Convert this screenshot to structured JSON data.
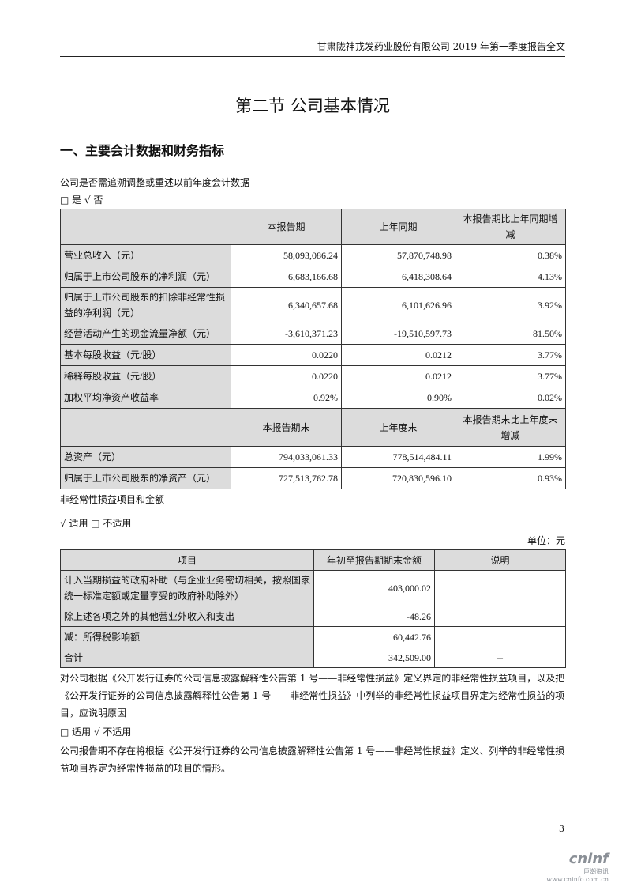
{
  "header": "甘肃陇神戎发药业股份有限公司 2019 年第一季度报告全文",
  "section_title": "第二节  公司基本情况",
  "heading1": "一、主要会计数据和财务指标",
  "restate_q": "公司是否需追溯调整或重述以前年度会计数据",
  "restate_opts": "□ 是 √ 否",
  "table1": {
    "headers": [
      "",
      "本报告期",
      "上年同期",
      "本报告期比上年同期增减"
    ],
    "rows": [
      [
        "营业总收入（元）",
        "58,093,086.24",
        "57,870,748.98",
        "0.38%"
      ],
      [
        "归属于上市公司股东的净利润（元）",
        "6,683,166.68",
        "6,418,308.64",
        "4.13%"
      ],
      [
        "归属于上市公司股东的扣除非经常性损益的净利润（元）",
        "6,340,657.68",
        "6,101,626.96",
        "3.92%"
      ],
      [
        "经营活动产生的现金流量净额（元）",
        "-3,610,371.23",
        "-19,510,597.73",
        "81.50%"
      ],
      [
        "基本每股收益（元/股）",
        "0.0220",
        "0.0212",
        "3.77%"
      ],
      [
        "稀释每股收益（元/股）",
        "0.0220",
        "0.0212",
        "3.77%"
      ],
      [
        "加权平均净资产收益率",
        "0.92%",
        "0.90%",
        "0.02%"
      ]
    ],
    "headers2": [
      "",
      "本报告期末",
      "上年度末",
      "本报告期末比上年度末增减"
    ],
    "rows2": [
      [
        "总资产（元）",
        "794,033,061.33",
        "778,514,484.11",
        "1.99%"
      ],
      [
        "归属于上市公司股东的净资产（元）",
        "727,513,762.78",
        "720,830,596.10",
        "0.93%"
      ]
    ]
  },
  "nonrec_title": "非经常性损益项目和金额",
  "nonrec_opts": "√ 适用 □ 不适用",
  "unit": "单位：元",
  "table2": {
    "headers": [
      "项目",
      "年初至报告期期末金额",
      "说明"
    ],
    "rows": [
      [
        "计入当期损益的政府补助（与企业业务密切相关，按照国家统一标准定额或定量享受的政府补助除外）",
        "403,000.02",
        ""
      ],
      [
        "除上述各项之外的其他营业外收入和支出",
        "-48.26",
        ""
      ],
      [
        "减：所得税影响额",
        "60,442.76",
        ""
      ],
      [
        "合计",
        "342,509.00",
        "--"
      ]
    ]
  },
  "para1": "对公司根据《公开发行证券的公司信息披露解释性公告第 1 号——非经常性损益》定义界定的非经常性损益项目，以及把《公开发行证券的公司信息披露解释性公告第 1 号——非经常性损益》中列举的非经常性损益项目界定为经常性损益的项目，应说明原因",
  "para1_opts": "□ 适用 √ 不适用",
  "para2": "公司报告期不存在将根据《公开发行证券的公司信息披露解释性公告第 1 号——非经常性损益》定义、列举的非经常性损益项目界定为经常性损益的项目的情形。",
  "page_number": "3",
  "logo": {
    "brand": "cninf",
    "cn": "巨潮资讯",
    "url": "www.cninfo.com.cn"
  }
}
